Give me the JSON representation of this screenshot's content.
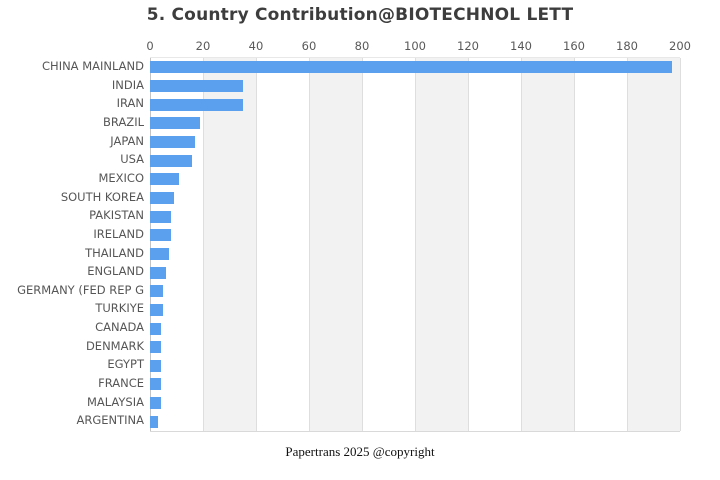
{
  "title": "5. Country Contribution@BIOTECHNOL LETT",
  "footer": "Papertrans 2025 @copyright",
  "chart_data": {
    "type": "bar",
    "orientation": "horizontal",
    "title": "5. Country Contribution@BIOTECHNOL LETT",
    "xlabel": "",
    "ylabel": "",
    "xlim": [
      0,
      200
    ],
    "xticks": [
      0,
      20,
      40,
      60,
      80,
      100,
      120,
      140,
      160,
      180,
      200
    ],
    "grid": true,
    "legend_position": "none",
    "bar_color": "#5aa0ee",
    "band_color": "#f2f2f2",
    "categories": [
      "CHINA MAINLAND",
      "INDIA",
      "IRAN",
      "BRAZIL",
      "JAPAN",
      "USA",
      "MEXICO",
      "SOUTH KOREA",
      "PAKISTAN",
      "IRELAND",
      "THAILAND",
      "ENGLAND",
      "GERMANY (FED REP G",
      "TURKIYE",
      "CANADA",
      "DENMARK",
      "EGYPT",
      "FRANCE",
      "MALAYSIA",
      "ARGENTINA"
    ],
    "values": [
      197,
      35,
      35,
      19,
      17,
      16,
      11,
      9,
      8,
      8,
      7,
      6,
      5,
      5,
      4,
      4,
      4,
      4,
      4,
      3
    ]
  }
}
